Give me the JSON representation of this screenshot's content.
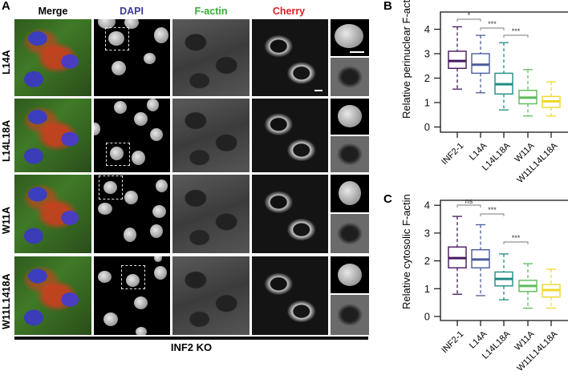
{
  "panel_A": {
    "letter": "A",
    "columns": [
      {
        "label": "Merge",
        "color": "#000000"
      },
      {
        "label": "DAPI",
        "color": "#3a3aa0"
      },
      {
        "label": "F-actin",
        "color": "#3aaa35"
      },
      {
        "label": "Cherry",
        "color": "#e02020"
      }
    ],
    "rows": [
      {
        "label": "L14A"
      },
      {
        "label": "L14L18A"
      },
      {
        "label": "W11A"
      },
      {
        "label": "W11L1418A"
      }
    ],
    "footer_label": "INF2 KO"
  },
  "panel_B": {
    "letter": "B"
  },
  "panel_C": {
    "letter": "C"
  },
  "chart_data": [
    {
      "type": "box",
      "panel": "B",
      "title": "",
      "xlabel": "",
      "ylabel": "Relative perinuclear F-actin",
      "ylim": [
        0,
        4.4
      ],
      "yticks": [
        0,
        1,
        2,
        3,
        4
      ],
      "categories": [
        "INF2-1",
        "L14A",
        "L14L18A",
        "W11A",
        "W11L14L18A"
      ],
      "colors": [
        "#44175e",
        "#4a5c9e",
        "#1f8c84",
        "#5dbb5a",
        "#f0d828"
      ],
      "series": [
        {
          "name": "INF2-1",
          "whisker_low": 1.55,
          "q1": 2.4,
          "median": 2.7,
          "q3": 3.1,
          "whisker_high": 4.1
        },
        {
          "name": "L14A",
          "whisker_low": 1.4,
          "q1": 2.2,
          "median": 2.55,
          "q3": 3.0,
          "whisker_high": 3.75
        },
        {
          "name": "L14L18A",
          "whisker_low": 0.7,
          "q1": 1.35,
          "median": 1.75,
          "q3": 2.2,
          "whisker_high": 3.45
        },
        {
          "name": "W11A",
          "whisker_low": 0.45,
          "q1": 0.95,
          "median": 1.2,
          "q3": 1.5,
          "whisker_high": 2.35
        },
        {
          "name": "W11L14L18A",
          "whisker_low": 0.45,
          "q1": 0.8,
          "median": 1.05,
          "q3": 1.25,
          "whisker_high": 1.85
        }
      ],
      "annotations": [
        {
          "from": "INF2-1",
          "to": "L14A",
          "label": "*"
        },
        {
          "from": "L14A",
          "to": "L14L18A",
          "label": "***"
        },
        {
          "from": "L14L18A",
          "to": "W11A",
          "label": "***"
        }
      ]
    },
    {
      "type": "box",
      "panel": "C",
      "title": "",
      "xlabel": "",
      "ylabel": "Relative cytosolic F-actin",
      "ylim": [
        0,
        4.2
      ],
      "yticks": [
        0,
        1,
        2,
        3,
        4
      ],
      "categories": [
        "INF2-1",
        "L14A",
        "L14L18A",
        "W11A",
        "W11L14L18A"
      ],
      "colors": [
        "#44175e",
        "#4a5c9e",
        "#1f8c84",
        "#5dbb5a",
        "#f0d828"
      ],
      "series": [
        {
          "name": "INF2-1",
          "whisker_low": 0.8,
          "q1": 1.75,
          "median": 2.1,
          "q3": 2.5,
          "whisker_high": 3.6
        },
        {
          "name": "L14A",
          "whisker_low": 0.75,
          "q1": 1.75,
          "median": 2.05,
          "q3": 2.4,
          "whisker_high": 3.3
        },
        {
          "name": "L14L18A",
          "whisker_low": 0.6,
          "q1": 1.1,
          "median": 1.35,
          "q3": 1.6,
          "whisker_high": 2.25
        },
        {
          "name": "W11A",
          "whisker_low": 0.3,
          "q1": 0.9,
          "median": 1.1,
          "q3": 1.3,
          "whisker_high": 1.9
        },
        {
          "name": "W11L14L18A",
          "whisker_low": 0.3,
          "q1": 0.7,
          "median": 0.95,
          "q3": 1.15,
          "whisker_high": 1.7
        }
      ],
      "annotations": [
        {
          "from": "INF2-1",
          "to": "L14A",
          "label": "ns"
        },
        {
          "from": "L14A",
          "to": "L14L18A",
          "label": "***"
        },
        {
          "from": "L14L18A",
          "to": "W11A",
          "label": "***"
        }
      ]
    }
  ]
}
